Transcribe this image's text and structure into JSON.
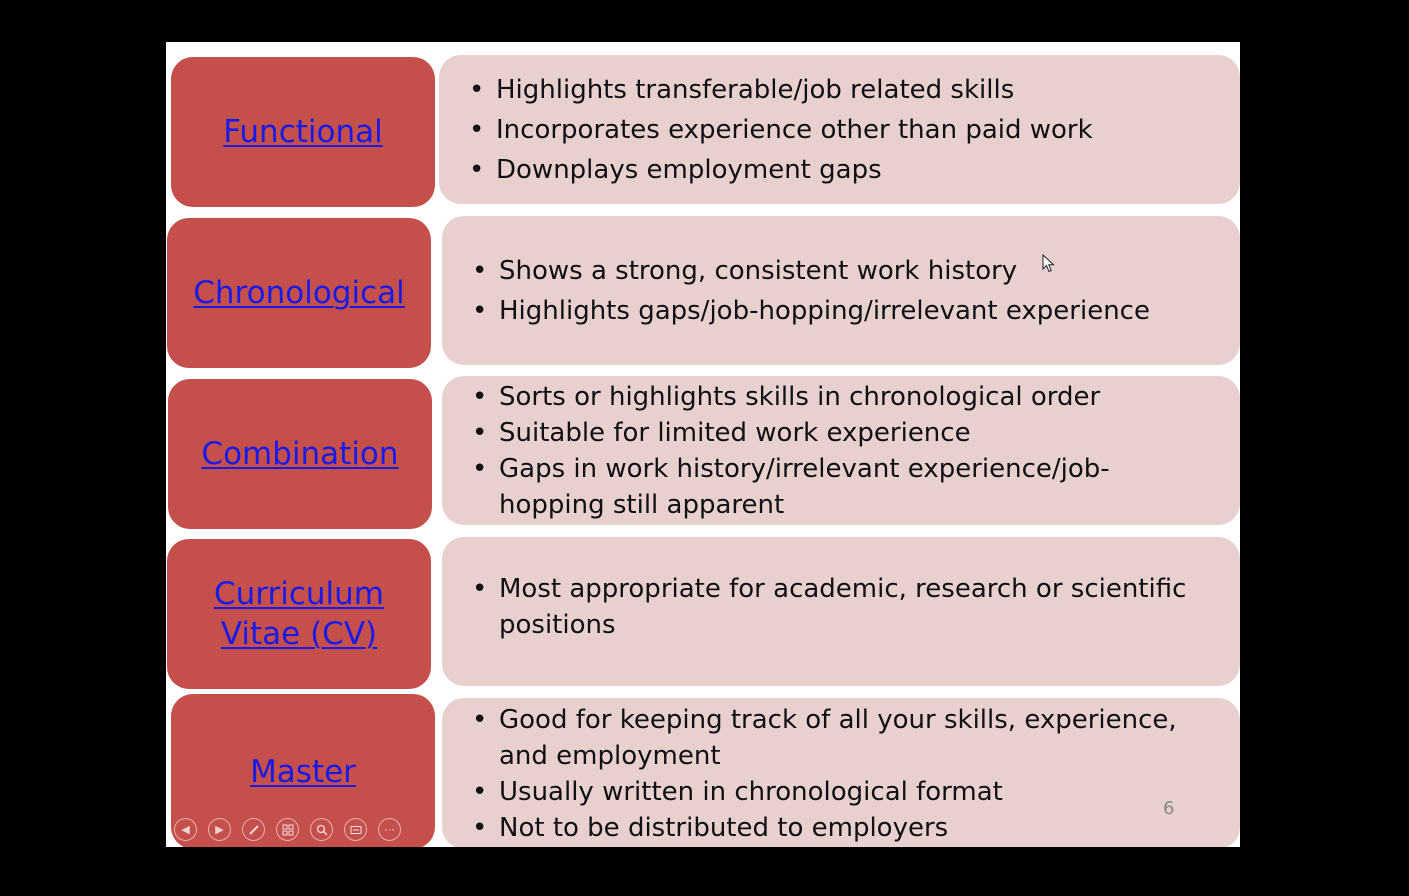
{
  "slide": {
    "number": "6",
    "rows": [
      {
        "name": "functional",
        "label_lines": [
          "Functional"
        ],
        "bullets": [
          "Highlights transferable/job related skills",
          "Incorporates experience other than paid work",
          "Downplays employment gaps"
        ]
      },
      {
        "name": "chronological",
        "label_lines": [
          "Chronological"
        ],
        "bullets": [
          "Shows a strong, consistent work history",
          "Highlights gaps/job-hopping/irrelevant experience"
        ]
      },
      {
        "name": "combination",
        "label_lines": [
          "Combination"
        ],
        "bullets": [
          "Sorts or highlights skills in chronological order",
          "Suitable for limited work experience",
          "Gaps in work history/irrelevant experience/job-hopping still apparent"
        ]
      },
      {
        "name": "cv",
        "label_lines": [
          "Curriculum",
          "Vitae (CV)"
        ],
        "bullets": [
          "Most appropriate for academic, research or scientific positions"
        ]
      },
      {
        "name": "master",
        "label_lines": [
          "Master"
        ],
        "bullets": [
          "Good for keeping track of all your skills, experience, and employment",
          "Usually written in chronological format",
          "Not to be distributed to employers"
        ]
      }
    ]
  },
  "toolbar": {
    "icons": [
      "previous-icon",
      "next-icon",
      "pen-icon",
      "slides-grid-icon",
      "zoom-icon",
      "subtitles-icon",
      "more-options-icon"
    ]
  },
  "colors": {
    "label_box": "#c5504b",
    "content_box": "#e8d0cf",
    "link": "#1a1ae6"
  }
}
